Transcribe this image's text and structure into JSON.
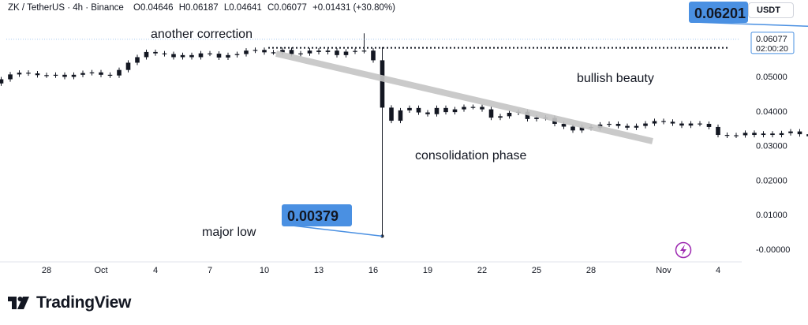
{
  "header": {
    "symbol": "ZK / TetherUS · 4h · Binance",
    "open": "O0.04646",
    "high": "H0.06187",
    "low": "L0.04641",
    "close": "C0.06077",
    "change": "+0.01431 (+30.80%)",
    "currency_button": "USDT"
  },
  "brand": {
    "name": "TradingView",
    "logo_icon": "tradingview-logo-icon"
  },
  "colors": {
    "candle": "#131722",
    "callout": "#4a90e2",
    "annotation_line": "#c5c5c5",
    "background": "#ffffff"
  },
  "chart_data": {
    "type": "candlestick",
    "title": "",
    "xlabel": "",
    "ylabel": "",
    "ylim": [
      -0.0075,
      0.0672
    ],
    "grid": false,
    "x_ticks": [
      "28",
      "Oct",
      "4",
      "7",
      "10",
      "13",
      "16",
      "19",
      "22",
      "25",
      "28",
      "Nov",
      "4"
    ],
    "y_ticks": [
      "0.05000",
      "0.04000",
      "0.03000",
      "0.02000",
      "0.01000",
      "-0.00000"
    ],
    "price_label": {
      "value": "0.06077",
      "countdown": "02:00:20"
    },
    "reference_line": 0.0583,
    "series": [
      {
        "name": "",
        "points": [
          [
            25.0,
            0.048
          ],
          [
            25.5,
            0.0492
          ],
          [
            26.0,
            0.0506
          ],
          [
            26.5,
            0.0511
          ],
          [
            27.0,
            0.0509
          ],
          [
            27.5,
            0.0504
          ],
          [
            28.0,
            0.0503
          ],
          [
            28.5,
            0.0505
          ],
          [
            29.0,
            0.0499
          ],
          [
            29.5,
            0.0505
          ],
          [
            30.0,
            0.051
          ],
          [
            30.5,
            0.0512
          ],
          [
            31.0,
            0.0505
          ],
          [
            31.5,
            0.0503
          ],
          [
            32.0,
            0.0519
          ],
          [
            32.5,
            0.054
          ],
          [
            33.0,
            0.0556
          ],
          [
            33.5,
            0.0571
          ],
          [
            34.0,
            0.0567
          ],
          [
            34.5,
            0.0565
          ],
          [
            35.0,
            0.0556
          ],
          [
            35.5,
            0.0562
          ],
          [
            36.0,
            0.0556
          ],
          [
            36.5,
            0.0567
          ],
          [
            37.0,
            0.0566
          ],
          [
            37.5,
            0.0555
          ],
          [
            38.0,
            0.0562
          ],
          [
            38.5,
            0.0565
          ],
          [
            39.0,
            0.0575
          ],
          [
            39.5,
            0.0577
          ],
          [
            40.0,
            0.057
          ],
          [
            40.5,
            0.057
          ],
          [
            41.0,
            0.0577
          ],
          [
            41.5,
            0.0565
          ],
          [
            42.0,
            0.0567
          ],
          [
            42.5,
            0.0575
          ],
          [
            43.0,
            0.0571
          ],
          [
            43.5,
            0.0575
          ],
          [
            44.0,
            0.0562
          ],
          [
            44.5,
            0.0572
          ],
          [
            45.0,
            0.0574
          ],
          [
            45.5,
            0.0575
          ],
          [
            46.0,
            0.0547
          ],
          [
            46.5,
            0.041
          ],
          [
            47.0,
            0.0372
          ],
          [
            47.5,
            0.0402
          ],
          [
            48.0,
            0.0409
          ],
          [
            48.5,
            0.0396
          ],
          [
            49.0,
            0.0391
          ],
          [
            49.5,
            0.0409
          ],
          [
            50.0,
            0.0397
          ],
          [
            50.5,
            0.0405
          ],
          [
            51.0,
            0.0412
          ],
          [
            51.5,
            0.0412
          ],
          [
            52.0,
            0.0405
          ],
          [
            52.5,
            0.0381
          ],
          [
            53.0,
            0.0385
          ],
          [
            53.5,
            0.0395
          ],
          [
            54.0,
            0.0398
          ],
          [
            54.5,
            0.0377
          ],
          [
            55.0,
            0.0381
          ],
          [
            55.5,
            0.038
          ],
          [
            56.0,
            0.0363
          ],
          [
            56.5,
            0.0355
          ],
          [
            57.0,
            0.0344
          ],
          [
            57.5,
            0.0354
          ],
          [
            58.0,
            0.0351
          ],
          [
            58.5,
            0.0361
          ],
          [
            59.0,
            0.0363
          ],
          [
            59.5,
            0.0357
          ],
          [
            60.0,
            0.0352
          ],
          [
            60.5,
            0.0357
          ],
          [
            61.0,
            0.0364
          ],
          [
            61.5,
            0.0371
          ],
          [
            62.0,
            0.0369
          ],
          [
            62.5,
            0.0364
          ],
          [
            63.0,
            0.0358
          ],
          [
            63.5,
            0.0364
          ],
          [
            64.0,
            0.0363
          ],
          [
            64.5,
            0.0354
          ],
          [
            65.0,
            0.0331
          ],
          [
            65.5,
            0.0329
          ],
          [
            66.0,
            0.033
          ],
          [
            66.5,
            0.0337
          ],
          [
            67.0,
            0.0331
          ],
          [
            67.5,
            0.0335
          ],
          [
            68.0,
            0.0331
          ],
          [
            68.5,
            0.0336
          ],
          [
            69.0,
            0.0341
          ],
          [
            69.5,
            0.0333
          ],
          [
            70.0,
            0.0327
          ],
          [
            70.5,
            0.0328
          ],
          [
            71.0,
            0.0338
          ],
          [
            71.5,
            0.034
          ],
          [
            72.0,
            0.0338
          ],
          [
            72.5,
            0.0329
          ],
          [
            73.0,
            0.0336
          ],
          [
            73.5,
            0.0341
          ],
          [
            74.0,
            0.0336
          ],
          [
            74.5,
            0.033
          ],
          [
            75.0,
            0.0323
          ],
          [
            75.5,
            0.0323
          ],
          [
            76.0,
            0.0329
          ],
          [
            76.5,
            0.0331
          ],
          [
            77.0,
            0.0329
          ],
          [
            77.5,
            0.0317
          ],
          [
            78.0,
            0.0292
          ],
          [
            78.5,
            0.0282
          ],
          [
            79.0,
            0.0291
          ],
          [
            79.5,
            0.0289
          ],
          [
            80.0,
            0.0291
          ],
          [
            80.5,
            0.0288
          ],
          [
            81.0,
            0.0322
          ],
          [
            81.5,
            0.04
          ],
          [
            82.0,
            0.0454
          ],
          [
            82.5,
            0.0496
          ],
          [
            83.0,
            0.0469
          ],
          [
            83.5,
            0.0608
          ]
        ]
      }
    ],
    "annotations": {
      "high_callout": "0.06201",
      "low_callout": "0.00379",
      "labels": [
        "another correction",
        "major low",
        "consolidation phase",
        "bullish beauty"
      ]
    }
  }
}
